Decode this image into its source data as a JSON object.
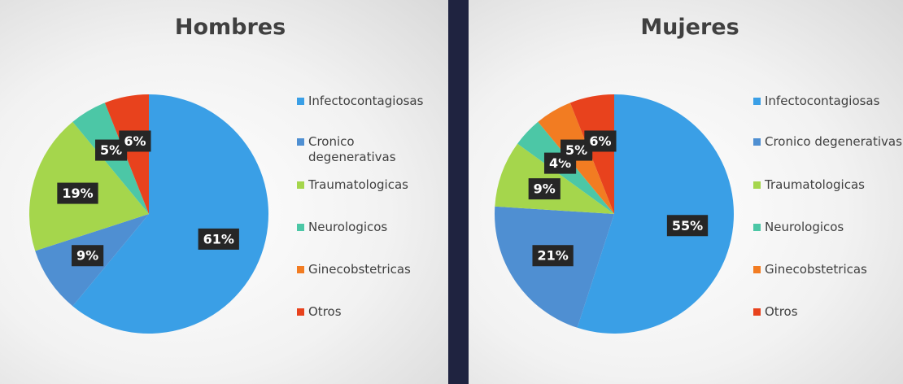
{
  "chart_data": [
    {
      "type": "pie",
      "title": "Hombres",
      "categories": [
        "Infectocontagiosas",
        "Cronico degenerativas",
        "Traumatologicas",
        "Neurologicos",
        "Ginecobstetricas",
        "Otros"
      ],
      "values": [
        61,
        9,
        19,
        5,
        0,
        6
      ],
      "value_labels": [
        "61%",
        "9%",
        "19%",
        "5%",
        null,
        "6%"
      ],
      "colors": [
        "#3a9fe6",
        "#4f8fd2",
        "#a5d64c",
        "#4cc7a6",
        "#f27c22",
        "#e8421d"
      ]
    },
    {
      "type": "pie",
      "title": "Mujeres",
      "categories": [
        "Infectocontagiosas",
        "Cronico degenerativas",
        "Traumatologicas",
        "Neurologicos",
        "Ginecobstetricas",
        "Otros"
      ],
      "values": [
        55,
        21,
        9,
        4,
        5,
        6
      ],
      "value_labels": [
        "55%",
        "21%",
        "9%",
        "4%",
        "5%",
        "6%"
      ],
      "colors": [
        "#3a9fe6",
        "#4f8fd2",
        "#a5d64c",
        "#4cc7a6",
        "#f27c22",
        "#e8421d"
      ]
    }
  ]
}
